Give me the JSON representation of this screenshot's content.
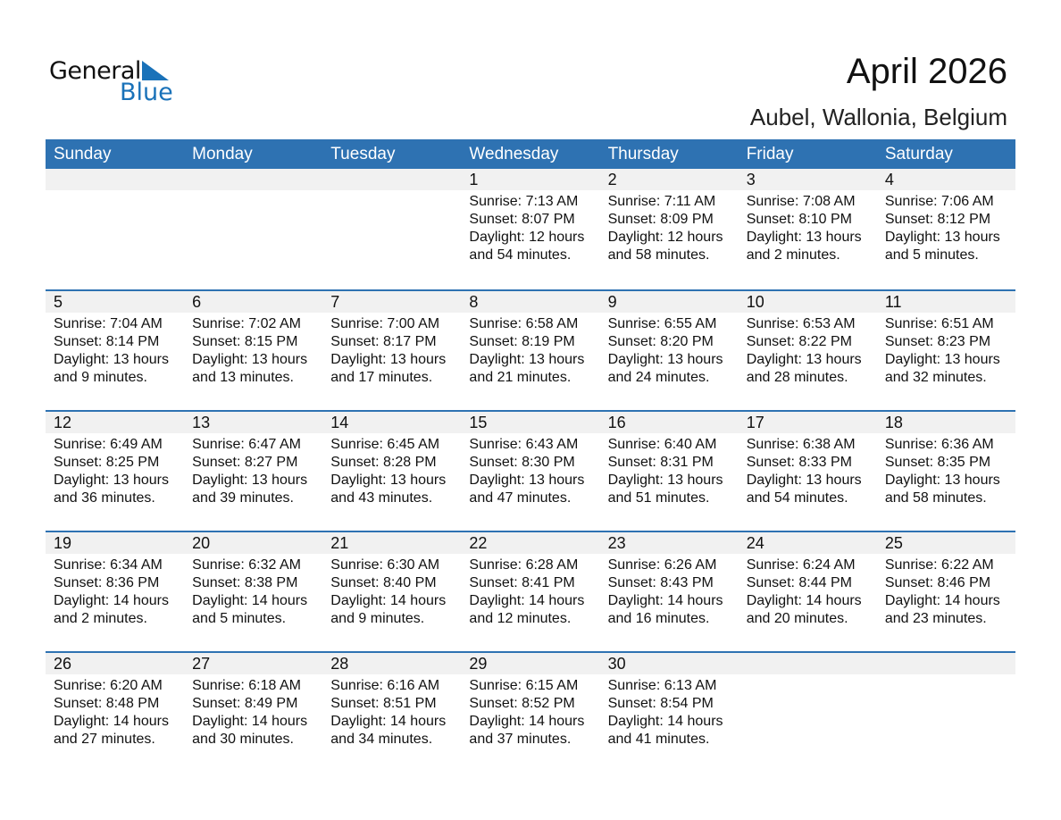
{
  "logo": {
    "word1": "General",
    "word2": "Blue"
  },
  "header": {
    "title": "April 2026",
    "location": "Aubel, Wallonia, Belgium"
  },
  "colors": {
    "accent": "#2e72b2",
    "strip": "#f1f1f1",
    "logo_blue": "#1a72b9"
  },
  "weekdays": [
    "Sunday",
    "Monday",
    "Tuesday",
    "Wednesday",
    "Thursday",
    "Friday",
    "Saturday"
  ],
  "weeks": [
    {
      "days": [
        null,
        null,
        null,
        {
          "day": "1",
          "sunrise": "Sunrise: 7:13 AM",
          "sunset": "Sunset: 8:07 PM",
          "daylight1": "Daylight: 12 hours",
          "daylight2": "and 54 minutes."
        },
        {
          "day": "2",
          "sunrise": "Sunrise: 7:11 AM",
          "sunset": "Sunset: 8:09 PM",
          "daylight1": "Daylight: 12 hours",
          "daylight2": "and 58 minutes."
        },
        {
          "day": "3",
          "sunrise": "Sunrise: 7:08 AM",
          "sunset": "Sunset: 8:10 PM",
          "daylight1": "Daylight: 13 hours",
          "daylight2": "and 2 minutes."
        },
        {
          "day": "4",
          "sunrise": "Sunrise: 7:06 AM",
          "sunset": "Sunset: 8:12 PM",
          "daylight1": "Daylight: 13 hours",
          "daylight2": "and 5 minutes."
        }
      ]
    },
    {
      "days": [
        {
          "day": "5",
          "sunrise": "Sunrise: 7:04 AM",
          "sunset": "Sunset: 8:14 PM",
          "daylight1": "Daylight: 13 hours",
          "daylight2": "and 9 minutes."
        },
        {
          "day": "6",
          "sunrise": "Sunrise: 7:02 AM",
          "sunset": "Sunset: 8:15 PM",
          "daylight1": "Daylight: 13 hours",
          "daylight2": "and 13 minutes."
        },
        {
          "day": "7",
          "sunrise": "Sunrise: 7:00 AM",
          "sunset": "Sunset: 8:17 PM",
          "daylight1": "Daylight: 13 hours",
          "daylight2": "and 17 minutes."
        },
        {
          "day": "8",
          "sunrise": "Sunrise: 6:58 AM",
          "sunset": "Sunset: 8:19 PM",
          "daylight1": "Daylight: 13 hours",
          "daylight2": "and 21 minutes."
        },
        {
          "day": "9",
          "sunrise": "Sunrise: 6:55 AM",
          "sunset": "Sunset: 8:20 PM",
          "daylight1": "Daylight: 13 hours",
          "daylight2": "and 24 minutes."
        },
        {
          "day": "10",
          "sunrise": "Sunrise: 6:53 AM",
          "sunset": "Sunset: 8:22 PM",
          "daylight1": "Daylight: 13 hours",
          "daylight2": "and 28 minutes."
        },
        {
          "day": "11",
          "sunrise": "Sunrise: 6:51 AM",
          "sunset": "Sunset: 8:23 PM",
          "daylight1": "Daylight: 13 hours",
          "daylight2": "and 32 minutes."
        }
      ]
    },
    {
      "days": [
        {
          "day": "12",
          "sunrise": "Sunrise: 6:49 AM",
          "sunset": "Sunset: 8:25 PM",
          "daylight1": "Daylight: 13 hours",
          "daylight2": "and 36 minutes."
        },
        {
          "day": "13",
          "sunrise": "Sunrise: 6:47 AM",
          "sunset": "Sunset: 8:27 PM",
          "daylight1": "Daylight: 13 hours",
          "daylight2": "and 39 minutes."
        },
        {
          "day": "14",
          "sunrise": "Sunrise: 6:45 AM",
          "sunset": "Sunset: 8:28 PM",
          "daylight1": "Daylight: 13 hours",
          "daylight2": "and 43 minutes."
        },
        {
          "day": "15",
          "sunrise": "Sunrise: 6:43 AM",
          "sunset": "Sunset: 8:30 PM",
          "daylight1": "Daylight: 13 hours",
          "daylight2": "and 47 minutes."
        },
        {
          "day": "16",
          "sunrise": "Sunrise: 6:40 AM",
          "sunset": "Sunset: 8:31 PM",
          "daylight1": "Daylight: 13 hours",
          "daylight2": "and 51 minutes."
        },
        {
          "day": "17",
          "sunrise": "Sunrise: 6:38 AM",
          "sunset": "Sunset: 8:33 PM",
          "daylight1": "Daylight: 13 hours",
          "daylight2": "and 54 minutes."
        },
        {
          "day": "18",
          "sunrise": "Sunrise: 6:36 AM",
          "sunset": "Sunset: 8:35 PM",
          "daylight1": "Daylight: 13 hours",
          "daylight2": "and 58 minutes."
        }
      ]
    },
    {
      "days": [
        {
          "day": "19",
          "sunrise": "Sunrise: 6:34 AM",
          "sunset": "Sunset: 8:36 PM",
          "daylight1": "Daylight: 14 hours",
          "daylight2": "and 2 minutes."
        },
        {
          "day": "20",
          "sunrise": "Sunrise: 6:32 AM",
          "sunset": "Sunset: 8:38 PM",
          "daylight1": "Daylight: 14 hours",
          "daylight2": "and 5 minutes."
        },
        {
          "day": "21",
          "sunrise": "Sunrise: 6:30 AM",
          "sunset": "Sunset: 8:40 PM",
          "daylight1": "Daylight: 14 hours",
          "daylight2": "and 9 minutes."
        },
        {
          "day": "22",
          "sunrise": "Sunrise: 6:28 AM",
          "sunset": "Sunset: 8:41 PM",
          "daylight1": "Daylight: 14 hours",
          "daylight2": "and 12 minutes."
        },
        {
          "day": "23",
          "sunrise": "Sunrise: 6:26 AM",
          "sunset": "Sunset: 8:43 PM",
          "daylight1": "Daylight: 14 hours",
          "daylight2": "and 16 minutes."
        },
        {
          "day": "24",
          "sunrise": "Sunrise: 6:24 AM",
          "sunset": "Sunset: 8:44 PM",
          "daylight1": "Daylight: 14 hours",
          "daylight2": "and 20 minutes."
        },
        {
          "day": "25",
          "sunrise": "Sunrise: 6:22 AM",
          "sunset": "Sunset: 8:46 PM",
          "daylight1": "Daylight: 14 hours",
          "daylight2": "and 23 minutes."
        }
      ]
    },
    {
      "days": [
        {
          "day": "26",
          "sunrise": "Sunrise: 6:20 AM",
          "sunset": "Sunset: 8:48 PM",
          "daylight1": "Daylight: 14 hours",
          "daylight2": "and 27 minutes."
        },
        {
          "day": "27",
          "sunrise": "Sunrise: 6:18 AM",
          "sunset": "Sunset: 8:49 PM",
          "daylight1": "Daylight: 14 hours",
          "daylight2": "and 30 minutes."
        },
        {
          "day": "28",
          "sunrise": "Sunrise: 6:16 AM",
          "sunset": "Sunset: 8:51 PM",
          "daylight1": "Daylight: 14 hours",
          "daylight2": "and 34 minutes."
        },
        {
          "day": "29",
          "sunrise": "Sunrise: 6:15 AM",
          "sunset": "Sunset: 8:52 PM",
          "daylight1": "Daylight: 14 hours",
          "daylight2": "and 37 minutes."
        },
        {
          "day": "30",
          "sunrise": "Sunrise: 6:13 AM",
          "sunset": "Sunset: 8:54 PM",
          "daylight1": "Daylight: 14 hours",
          "daylight2": "and 41 minutes."
        },
        null,
        null
      ]
    }
  ]
}
